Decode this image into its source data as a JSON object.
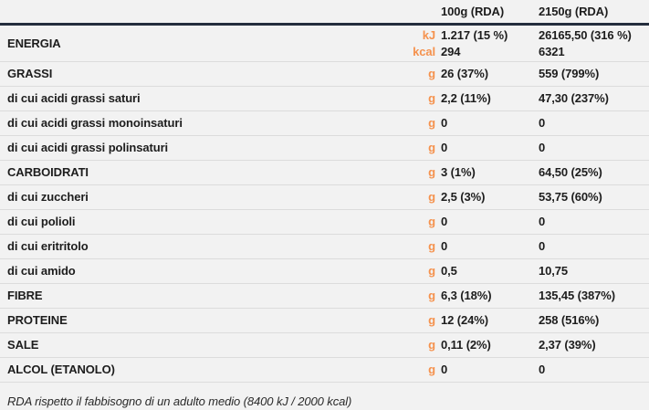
{
  "table": {
    "header": {
      "col_100g": "100g (RDA)",
      "col_2150g": "2150g (RDA)"
    },
    "rows": [
      {
        "label": "ENERGIA",
        "category": true,
        "lines": [
          {
            "unit": "kJ",
            "v100": "1.217 (15 %)",
            "v2150": "26165,50 (316 %)"
          },
          {
            "unit": "kcal",
            "v100": "294",
            "v2150": "6321"
          }
        ]
      },
      {
        "label": "GRASSI",
        "category": true,
        "lines": [
          {
            "unit": "g",
            "v100": "26 (37%)",
            "v2150": "559 (799%)"
          }
        ]
      },
      {
        "label": "di cui acidi grassi saturi",
        "category": false,
        "lines": [
          {
            "unit": "g",
            "v100": "2,2 (11%)",
            "v2150": "47,30 (237%)"
          }
        ]
      },
      {
        "label": "di cui acidi grassi monoinsaturi",
        "category": false,
        "lines": [
          {
            "unit": "g",
            "v100": "0",
            "v2150": "0"
          }
        ]
      },
      {
        "label": "di cui acidi grassi polinsaturi",
        "category": false,
        "lines": [
          {
            "unit": "g",
            "v100": "0",
            "v2150": "0"
          }
        ]
      },
      {
        "label": "CARBOIDRATI",
        "category": true,
        "lines": [
          {
            "unit": "g",
            "v100": "3 (1%)",
            "v2150": "64,50 (25%)"
          }
        ]
      },
      {
        "label": "di cui zuccheri",
        "category": false,
        "lines": [
          {
            "unit": "g",
            "v100": "2,5 (3%)",
            "v2150": "53,75 (60%)"
          }
        ]
      },
      {
        "label": "di cui polioli",
        "category": false,
        "lines": [
          {
            "unit": "g",
            "v100": "0",
            "v2150": "0"
          }
        ]
      },
      {
        "label": "di cui eritritolo",
        "category": false,
        "lines": [
          {
            "unit": "g",
            "v100": "0",
            "v2150": "0"
          }
        ]
      },
      {
        "label": "di cui amido",
        "category": false,
        "lines": [
          {
            "unit": "g",
            "v100": "0,5",
            "v2150": "10,75"
          }
        ]
      },
      {
        "label": "FIBRE",
        "category": true,
        "lines": [
          {
            "unit": "g",
            "v100": "6,3 (18%)",
            "v2150": "135,45 (387%)"
          }
        ]
      },
      {
        "label": "PROTEINE",
        "category": true,
        "lines": [
          {
            "unit": "g",
            "v100": "12 (24%)",
            "v2150": "258 (516%)"
          }
        ]
      },
      {
        "label": "SALE",
        "category": true,
        "lines": [
          {
            "unit": "g",
            "v100": "0,11 (2%)",
            "v2150": "2,37 (39%)"
          }
        ]
      },
      {
        "label": "ALCOL (ETANOLO)",
        "category": true,
        "lines": [
          {
            "unit": "g",
            "v100": "0",
            "v2150": "0"
          }
        ]
      }
    ],
    "footnote": "RDA rispetto il fabbisogno di un adulto medio (8400 kJ / 2000 kcal)",
    "colors": {
      "accent_orange": "#f5924e",
      "header_rule": "#242e3d",
      "text": "#1d1d1d",
      "background": "#f2f2f2",
      "row_divider": "#dcdcdc"
    }
  }
}
